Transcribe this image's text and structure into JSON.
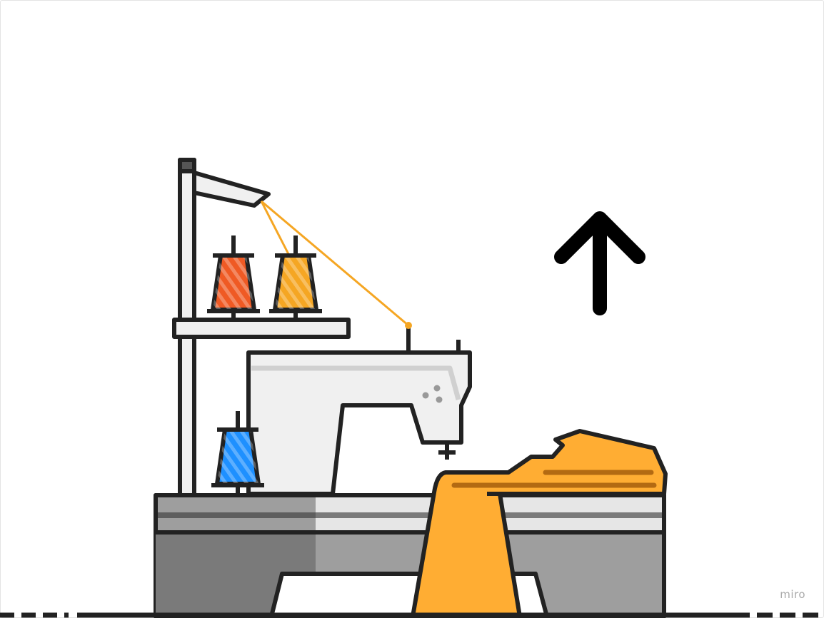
{
  "watermark": {
    "text": "miro"
  },
  "colors": {
    "outline": "#222222",
    "thread": "#f5a623",
    "fabric": "#ffad33",
    "fabric_stripe": "#b36a12",
    "spool_red": "#ef5a24",
    "spool_orange": "#f5a623",
    "spool_blue": "#1e90ff",
    "machine_body": "#f0f0f0",
    "table_light": "#e6e6e6",
    "table_mid": "#9e9e9e",
    "table_dark": "#7a7a7a",
    "watermark": "#aaaaaa"
  },
  "icons": {
    "arrow": "arrow-up-icon",
    "machine": "sewing-machine-icon"
  }
}
